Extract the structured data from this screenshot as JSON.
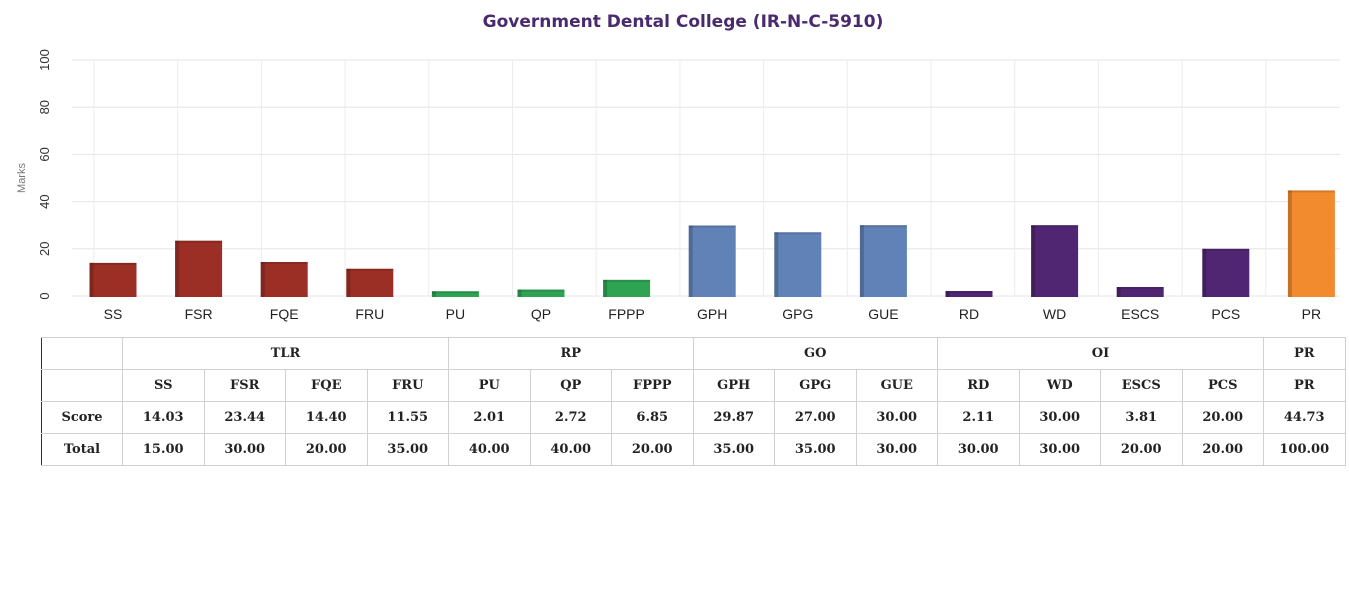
{
  "chart_data": {
    "type": "bar",
    "title": "Government Dental College (IR-N-C-5910)",
    "ylabel": "Marks",
    "ylim": [
      0,
      100
    ],
    "yticks": [
      "0",
      "20",
      "40",
      "60",
      "80",
      "100"
    ],
    "grid": true,
    "categories": [
      "SS",
      "FSR",
      "FQE",
      "FRU",
      "PU",
      "QP",
      "FPPP",
      "GPH",
      "GPG",
      "GUE",
      "RD",
      "WD",
      "ESCS",
      "PCS",
      "PR"
    ],
    "values": [
      14.03,
      23.44,
      14.4,
      11.55,
      2.01,
      2.72,
      6.85,
      29.87,
      27.0,
      30.0,
      2.11,
      30.0,
      3.81,
      20.0,
      44.73
    ],
    "colors": [
      "#9b2f26",
      "#9b2f26",
      "#9b2f26",
      "#9b2f26",
      "#2ea352",
      "#2ea352",
      "#2ea352",
      "#6082b6",
      "#6082b6",
      "#6082b6",
      "#502673",
      "#502673",
      "#502673",
      "#502673",
      "#f28a2e"
    ]
  },
  "table": {
    "groups": [
      {
        "label": "TLR",
        "span": 4
      },
      {
        "label": "RP",
        "span": 3
      },
      {
        "label": "GO",
        "span": 3
      },
      {
        "label": "OI",
        "span": 4
      },
      {
        "label": "PR",
        "span": 1
      }
    ],
    "headers": [
      "SS",
      "FSR",
      "FQE",
      "FRU",
      "PU",
      "QP",
      "FPPP",
      "GPH",
      "GPG",
      "GUE",
      "RD",
      "WD",
      "ESCS",
      "PCS",
      "PR"
    ],
    "rows": [
      {
        "label": "Score",
        "values": [
          "14.03",
          "23.44",
          "14.40",
          "11.55",
          "2.01",
          "2.72",
          "6.85",
          "29.87",
          "27.00",
          "30.00",
          "2.11",
          "30.00",
          "3.81",
          "20.00",
          "44.73"
        ]
      },
      {
        "label": "Total",
        "values": [
          "15.00",
          "30.00",
          "20.00",
          "35.00",
          "40.00",
          "40.00",
          "20.00",
          "35.00",
          "35.00",
          "30.00",
          "30.00",
          "30.00",
          "20.00",
          "20.00",
          "100.00"
        ]
      }
    ]
  }
}
